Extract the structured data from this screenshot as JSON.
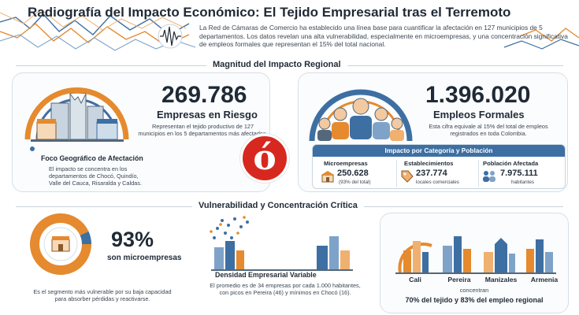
{
  "header": {
    "title": "Radiografía del Impacto Económico: El Tejido Empresarial tras el Terremoto",
    "intro": "La Red de Cámaras de Comercio ha establecido una línea base para cuantificar la afectación en 127 municipios de 5 departamentos. Los datos revelan una alta vulnerabilidad, especialmente en microempresas, y una concentración significativa de empleos formales que representan el 15% del total nacional."
  },
  "section1": {
    "title": "Magnitud del Impacto Regional",
    "empresas": {
      "value": "269.786",
      "label": "Empresas en Riesgo",
      "desc": "Representan el tejido productivo de 127 municipios en los 5 departamentos más afectados."
    },
    "empleos": {
      "value": "1.396.020",
      "label": "Empleos Formales",
      "desc": "Esta cifra equivale al 15% del total de empleos registrados en toda Colombia."
    },
    "foco": {
      "title": "Foco Geográfico de Afectación",
      "text": "El impacto se concentra en los departamentos de Chocó, Quindío, Valle del Cauca, Risaralda y Caldas."
    },
    "impacto": {
      "title": "Impacto por Categoría y Población",
      "cells": [
        {
          "title": "Microempresas",
          "value": "250.628",
          "sub": "(93% del total)"
        },
        {
          "title": "Establecimientos",
          "value": "237.774",
          "sub": "locales comerciales"
        },
        {
          "title": "Población Afectada",
          "value": "7.975.111",
          "sub": "habitantes"
        }
      ]
    },
    "logo_glyph": "ó"
  },
  "section2": {
    "title": "Vulnerabilidad y Concentración Crítica",
    "micro": {
      "percent": "93%",
      "label": "son microempresas",
      "desc": "Es el segmento más vulnerable por su baja capacidad para absorber pérdidas y reactivarse."
    },
    "densidad": {
      "title": "Densidad Empresarial Variable",
      "desc": "El promedio es de 34 empresas por cada 1.000 habitantes, con picos en Pereira (46) y mínimos en Chocó (16)."
    },
    "cities": [
      "Cali",
      "Pereira",
      "Manizales",
      "Armenia"
    ],
    "concentran": "concentran",
    "concentration": "70% del tejido y 83% del empleo regional"
  },
  "colors": {
    "accent_blue": "#3d6fa3",
    "accent_orange": "#e58a2e",
    "logo_red": "#d7281f",
    "dark_text": "#1f2a36"
  }
}
